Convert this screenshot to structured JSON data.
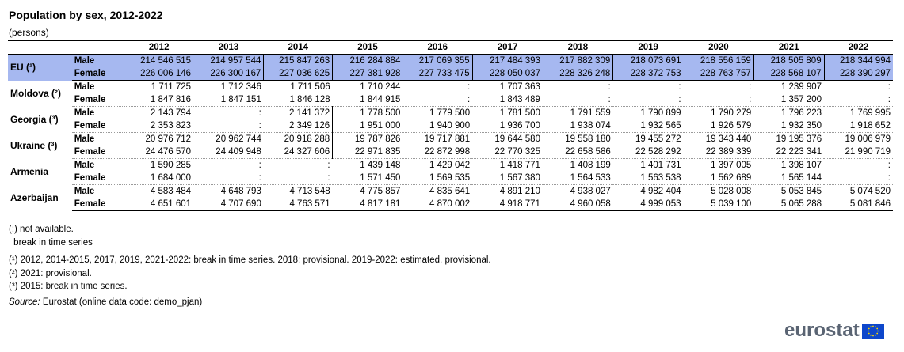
{
  "title": "Population by sex, 2012-2022",
  "unit": "(persons)",
  "years": [
    "2012",
    "2013",
    "2014",
    "2015",
    "2016",
    "2017",
    "2018",
    "2019",
    "2020",
    "2021",
    "2022"
  ],
  "sex_labels": {
    "male": "Male",
    "female": "Female"
  },
  "rows": [
    {
      "country": "EU (¹)",
      "breaks": [
        2,
        3,
        5,
        7,
        9,
        10
      ],
      "male": [
        "214 546 515",
        "214 957 544",
        "215 847 263",
        "216 284 884",
        "217 069 355",
        "217 484 393",
        "217 882 309",
        "218 073 691",
        "218 556 159",
        "218 505 809",
        "218 344 994"
      ],
      "female": [
        "226 006 146",
        "226 300 167",
        "227 036 625",
        "227 381 928",
        "227 733 475",
        "228 050 037",
        "228 326 248",
        "228 372 753",
        "228 763 757",
        "228 568 107",
        "228 390 297"
      ]
    },
    {
      "country": "Moldova (²)",
      "breaks": [],
      "male": [
        "1 711 725",
        "1 712 346",
        "1 711 506",
        "1 710 244",
        ":",
        "1 707 363",
        ":",
        ":",
        ":",
        "1 239 907",
        ":"
      ],
      "female": [
        "1 847 816",
        "1 847 151",
        "1 846 128",
        "1 844 915",
        ":",
        "1 843 489",
        ":",
        ":",
        ":",
        "1 357 200",
        ":"
      ]
    },
    {
      "country": "Georgia (³)",
      "breaks": [
        3
      ],
      "male": [
        "2 143 794",
        ":",
        "2 141 372",
        "1 778 500",
        "1 779 500",
        "1 781 500",
        "1 791 559",
        "1 790 899",
        "1 790 279",
        "1 796 223",
        "1 769 995"
      ],
      "female": [
        "2 353 823",
        ":",
        "2 349 126",
        "1 951 000",
        "1 940 900",
        "1 936 700",
        "1 938 074",
        "1 932 565",
        "1 926 579",
        "1 932 350",
        "1 918 652"
      ]
    },
    {
      "country": "Ukraine (³)",
      "breaks": [
        3
      ],
      "male": [
        "20 976 712",
        "20 962 744",
        "20 918 288",
        "19 787 826",
        "19 717 881",
        "19 644 580",
        "19 558 180",
        "19 455 272",
        "19 343 440",
        "19 195 376",
        "19 006 979"
      ],
      "female": [
        "24 476 570",
        "24 409 948",
        "24 327 606",
        "22 971 835",
        "22 872 998",
        "22 770 325",
        "22 658 586",
        "22 528 292",
        "22 389 339",
        "22 223 341",
        "21 990 719"
      ]
    },
    {
      "country": "Armenia",
      "breaks": [],
      "male": [
        "1 590 285",
        ":",
        ":",
        "1 439 148",
        "1 429 042",
        "1 418 771",
        "1 408 199",
        "1 401 731",
        "1 397 005",
        "1 398 107",
        ":"
      ],
      "female": [
        "1 684 000",
        ":",
        ":",
        "1 571 450",
        "1 569 535",
        "1 567 380",
        "1 564 533",
        "1 563 538",
        "1 562 689",
        "1 565 144",
        ":"
      ]
    },
    {
      "country": "Azerbaijan",
      "breaks": [],
      "male": [
        "4 583 484",
        "4 648 793",
        "4 713 548",
        "4 775 857",
        "4 835 641",
        "4 891 210",
        "4 938 027",
        "4 982 404",
        "5 028 008",
        "5 053 845",
        "5 074 520"
      ],
      "female": [
        "4 651 601",
        "4 707 690",
        "4 763 571",
        "4 817 181",
        "4 870 002",
        "4 918 771",
        "4 960 058",
        "4 999 053",
        "5 039 100",
        "5 065 288",
        "5 081 846"
      ]
    }
  ],
  "notes": {
    "na": "(:) not available.",
    "break": "| break in time series",
    "f1": "(¹) 2012, 2014-2015, 2017, 2019, 2021-2022: break in time series. 2018: provisional. 2019-2022: estimated, provisional.",
    "f2": "(²) 2021: provisional.",
    "f3": "(³) 2015: break in time series.",
    "source_label": "Source:",
    "source_text": " Eurostat (online data code: demo_pjan)"
  },
  "logo": {
    "text": "eurostat",
    "flag_icon": "eu-flag-icon",
    "flag_color": "#0e47cb",
    "star_color": "#ffdd00"
  }
}
